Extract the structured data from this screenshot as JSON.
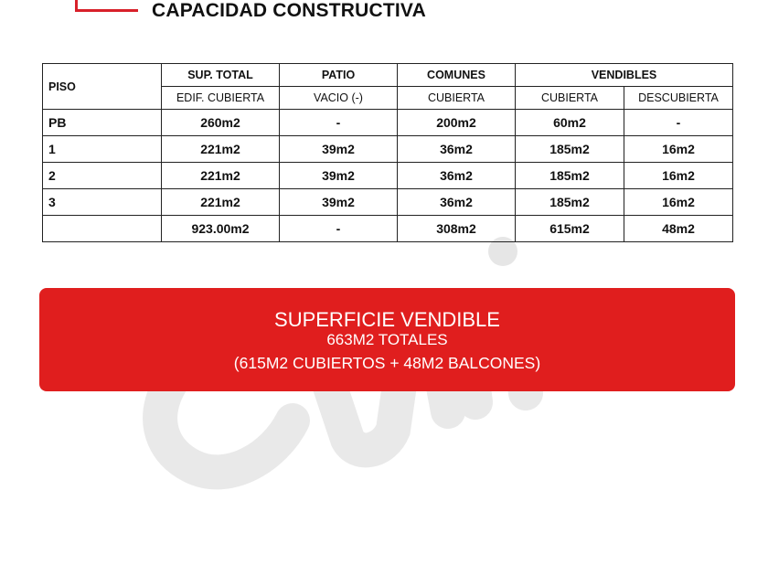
{
  "title": "CAPACIDAD CONSTRUCTIVA",
  "table": {
    "header1": {
      "piso": "PISO",
      "sup_total": "SUP. TOTAL",
      "patio": "PATIO",
      "comunes": "COMUNES",
      "vendibles": "VENDIBLES"
    },
    "header2": [
      "EDIF. CUBIERTA",
      "VACIO (-)",
      "CUBIERTA",
      "CUBIERTA",
      "DESCUBIERTA"
    ],
    "rows": [
      [
        "PB",
        "260m2",
        "-",
        "200m2",
        "60m2",
        "-"
      ],
      [
        "1",
        "221m2",
        "39m2",
        "36m2",
        "185m2",
        "16m2"
      ],
      [
        "2",
        "221m2",
        "39m2",
        "36m2",
        "185m2",
        "16m2"
      ],
      [
        "3",
        "221m2",
        "39m2",
        "36m2",
        "185m2",
        "16m2"
      ],
      [
        "",
        "923.00m2",
        "-",
        "308m2",
        "615m2",
        "48m2"
      ]
    ]
  },
  "banner": {
    "heading": "SUPERFICIE VENDIBLE",
    "total": "663M2 TOTALES",
    "detail": "(615M2 CUBIERTOS + 48M2 BALCONES)",
    "color": "#e01e1e"
  }
}
